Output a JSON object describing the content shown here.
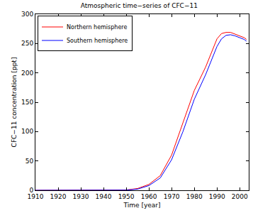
{
  "chart_data": {
    "type": "line",
    "title": "Atmospheric time−series of CFC−11",
    "xlabel": "Time [year]",
    "ylabel": "CFC−11 concentration [ppt]",
    "x": [
      1910,
      1940,
      1950,
      1955,
      1960,
      1965,
      1970,
      1975,
      1980,
      1985,
      1988,
      1990,
      1992,
      1994,
      1996,
      1998,
      2000,
      2002,
      2003
    ],
    "series": [
      {
        "name": "Northern hemisphere",
        "color": "#ff0000",
        "values": [
          0,
          0,
          0.5,
          3,
          10,
          25,
          60,
          115,
          170,
          210,
          240,
          258,
          267,
          269,
          269,
          266,
          263,
          260,
          257
        ]
      },
      {
        "name": "Southern hemisphere",
        "color": "#0000ff",
        "values": [
          0,
          0,
          0.3,
          2,
          8,
          21,
          52,
          100,
          155,
          197,
          225,
          245,
          258,
          264,
          265,
          263,
          260,
          257,
          254
        ]
      }
    ],
    "xlim": [
      1910,
      2004
    ],
    "xticks": [
      1910,
      1920,
      1930,
      1940,
      1950,
      1960,
      1970,
      1980,
      1990,
      2000
    ],
    "ylim": [
      0,
      300
    ],
    "yticks": [
      0,
      50,
      100,
      150,
      200,
      250,
      300
    ],
    "grid": false,
    "legend": "upper left"
  }
}
